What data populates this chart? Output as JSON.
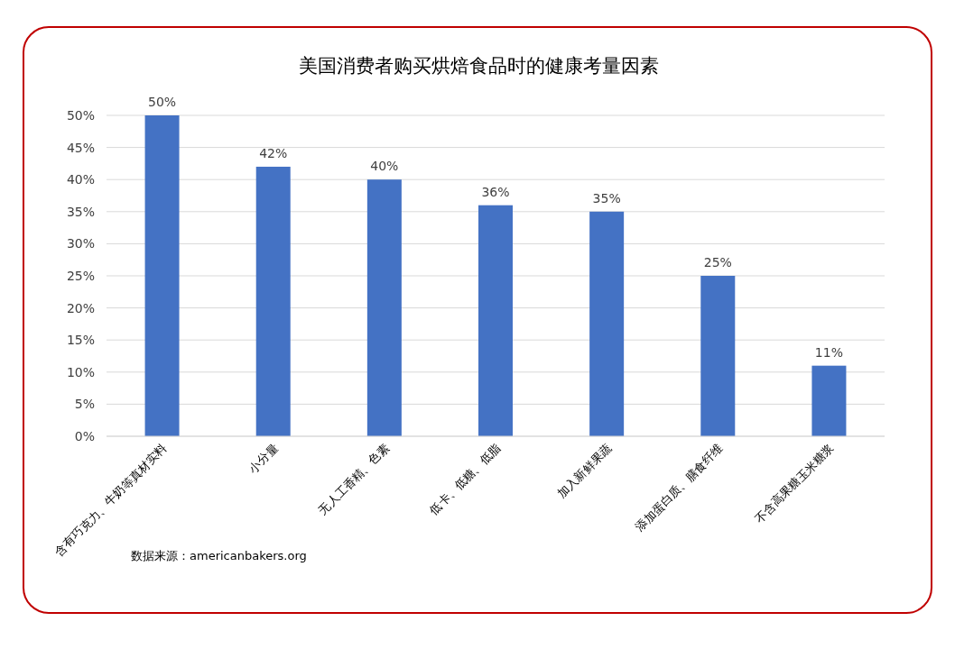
{
  "chart_data": {
    "type": "bar",
    "title": "美国消费者购买烘焙食品时的健康考量因素",
    "categories": [
      "含有巧克力、牛奶等真材实料",
      "小分量",
      "无人工香精、色素",
      "低卡、低糖、低脂",
      "加入新鲜果蔬",
      "添加蛋白质、膳食纤维",
      "不含高果糖玉米糖浆"
    ],
    "values": [
      50,
      42,
      40,
      36,
      35,
      25,
      11
    ],
    "value_labels": [
      "50%",
      "42%",
      "40%",
      "36%",
      "35%",
      "25%",
      "11%"
    ],
    "color": "#4472c4",
    "ylim": [
      0,
      50
    ],
    "yticks": [
      {
        "value": 0,
        "label": "0%"
      },
      {
        "value": 5,
        "label": "5%"
      },
      {
        "value": 10,
        "label": "10%"
      },
      {
        "value": 15,
        "label": "15%"
      },
      {
        "value": 20,
        "label": "20%"
      },
      {
        "value": 25,
        "label": "25%"
      },
      {
        "value": 30,
        "label": "30%"
      },
      {
        "value": 35,
        "label": "35%"
      },
      {
        "value": 40,
        "label": "40%"
      },
      {
        "value": 45,
        "label": "45%"
      },
      {
        "value": 50,
        "label": "50%"
      }
    ],
    "grid": "y",
    "annotations": [
      "数据来源：americanbakers.org"
    ]
  }
}
